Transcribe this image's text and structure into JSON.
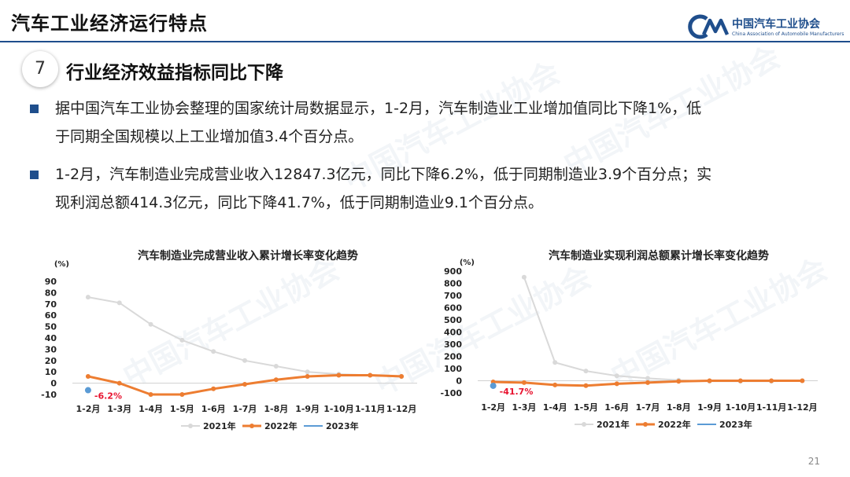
{
  "header": {
    "title": "汽车工业经济运行特点"
  },
  "logo": {
    "name": "中国汽车工业协会",
    "english": "China Association of Automobile Manufacturers"
  },
  "section": {
    "number": "7",
    "title": "行业经济效益指标同比下降"
  },
  "bullets": [
    {
      "line1": "据中国汽车工业协会整理的国家统计局数据显示，1-2月，汽车制造业工业增加值同比下降1%，低",
      "line2": "于同期全国规模以上工业增加值3.4个百分点。"
    },
    {
      "line1": "1-2月，汽车制造业完成营业收入12847.3亿元，同比下降6.2%，低于同期制造业3.9个百分点；实",
      "line2": "现利润总额414.3亿元，同比下降41.7%，低于同期制造业9.1个百分点。"
    }
  ],
  "page_number": "21",
  "colors": {
    "accent": "#1f4e8c",
    "series_2021": "#d9d9d9",
    "series_2022": "#ed7d31",
    "series_2023": "#5b9bd5",
    "label_red": "#e8132f"
  },
  "chart_data": [
    {
      "type": "line",
      "title": "汽车制造业完成营业收入累计增长率变化趋势",
      "unit_label": "(%)",
      "categories": [
        "1-2月",
        "1-3月",
        "1-4月",
        "1-5月",
        "1-6月",
        "1-7月",
        "1-8月",
        "1-9月",
        "1-10月",
        "1-11月",
        "1-12月"
      ],
      "ylim": [
        -10,
        90
      ],
      "yticks": [
        -10,
        0,
        10,
        20,
        30,
        40,
        50,
        60,
        70,
        80,
        90
      ],
      "series": [
        {
          "name": "2021年",
          "values": [
            76,
            71,
            52,
            38,
            28,
            20,
            15,
            10,
            8,
            7,
            6
          ]
        },
        {
          "name": "2022年",
          "values": [
            6,
            0,
            -10,
            -10,
            -5,
            -1,
            3,
            6,
            7,
            7,
            6
          ]
        },
        {
          "name": "2023年",
          "values": [
            -6.2,
            null,
            null,
            null,
            null,
            null,
            null,
            null,
            null,
            null,
            null
          ]
        }
      ],
      "data_labels": [
        {
          "series": "2023年",
          "index": 0,
          "text": "-6.2%"
        }
      ],
      "legend": "bottom"
    },
    {
      "type": "line",
      "title": "汽车制造业实现利润总额累计增长率变化趋势",
      "unit_label": "(%)",
      "categories": [
        "1-2月",
        "1-3月",
        "1-4月",
        "1-5月",
        "1-6月",
        "1-7月",
        "1-8月",
        "1-9月",
        "1-10月",
        "1-11月",
        "1-12月"
      ],
      "ylim": [
        -100,
        900
      ],
      "yticks": [
        -100,
        0,
        100,
        200,
        300,
        400,
        500,
        600,
        700,
        800,
        900
      ],
      "series": [
        {
          "name": "2021年",
          "values": [
            null,
            850,
            150,
            80,
            40,
            20,
            5,
            -5,
            -5,
            -5,
            0
          ]
        },
        {
          "name": "2022年",
          "values": [
            -10,
            -15,
            -35,
            -40,
            -25,
            -15,
            -5,
            0,
            0,
            0,
            0
          ]
        },
        {
          "name": "2023年",
          "values": [
            -41.7,
            null,
            null,
            null,
            null,
            null,
            null,
            null,
            null,
            null,
            null
          ]
        }
      ],
      "data_labels": [
        {
          "series": "2023年",
          "index": 0,
          "text": "-41.7%"
        }
      ],
      "legend": "bottom"
    }
  ]
}
